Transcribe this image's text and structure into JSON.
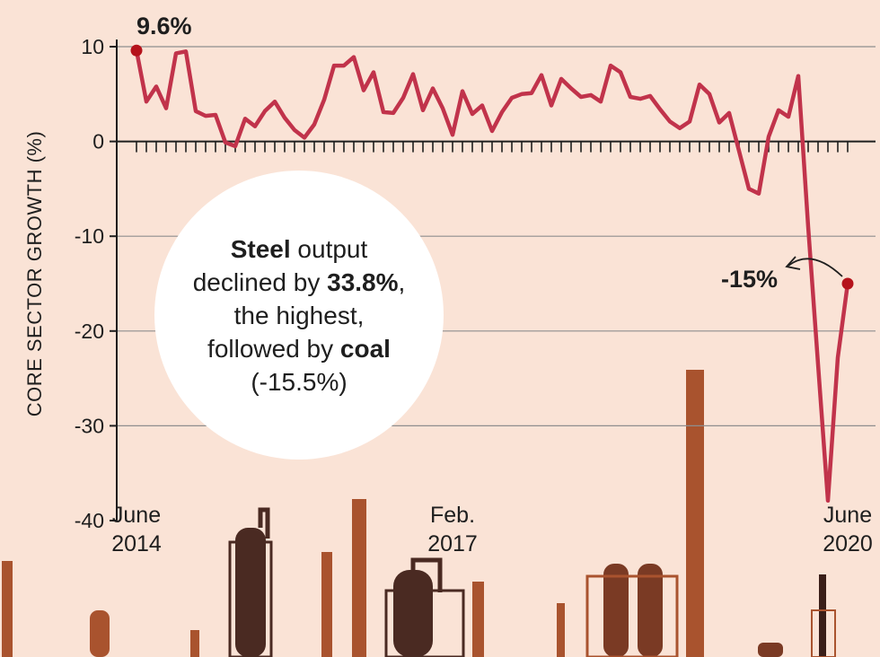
{
  "chart_data": {
    "type": "line",
    "title": "",
    "ylabel": "CORE SECTOR GROWTH (%)",
    "xlabel": "",
    "ylim": [
      -40,
      10
    ],
    "yticks": [
      "10",
      "0",
      "-10",
      "-20",
      "-30",
      "-40"
    ],
    "ytick_values": [
      10,
      0,
      -10,
      -20,
      -30,
      -40
    ],
    "grid": true,
    "x_labels": [
      {
        "index": 0,
        "line1": "June",
        "line2": "2014"
      },
      {
        "index": 32,
        "line1": "Feb.",
        "line2": "2017"
      },
      {
        "index": 72,
        "line1": "June",
        "line2": "2020"
      }
    ],
    "series": [
      {
        "color": "#c1334b",
        "values": [
          9.6,
          4.2,
          5.8,
          3.5,
          9.3,
          9.5,
          3.2,
          2.7,
          2.8,
          -0.1,
          -0.5,
          2.4,
          1.6,
          3.2,
          4.2,
          2.5,
          1.2,
          0.4,
          1.8,
          4.4,
          8.0,
          8.0,
          8.9,
          5.4,
          7.3,
          3.1,
          3.0,
          4.6,
          7.1,
          3.3,
          5.6,
          3.5,
          0.7,
          5.3,
          2.9,
          3.8,
          1.1,
          3.1,
          4.6,
          5.0,
          5.1,
          7.0,
          3.8,
          6.6,
          5.6,
          4.7,
          4.9,
          4.2,
          8.0,
          7.3,
          4.7,
          4.5,
          4.8,
          3.4,
          2.1,
          1.4,
          2.1,
          6.0,
          5.0,
          2.0,
          3.0,
          -1.0,
          -5.0,
          -5.5,
          0.5,
          3.3,
          2.6,
          6.9,
          -9.0,
          -23.5,
          -37.9,
          -22.8,
          -15.0
        ]
      }
    ],
    "annotations": [
      {
        "text": "9.6%",
        "point_index": 0
      },
      {
        "text": "-15%",
        "point_index": 72
      }
    ]
  },
  "callout": {
    "steel": "Steel",
    "t1": " output declined by ",
    "pct": "33.8%",
    "t2": ", the highest, followed by ",
    "coal": "coal",
    "paren": "(-15.5%)"
  },
  "colors": {
    "background": "#fae3d6",
    "line": "#c1334b",
    "chimney_light": "#a9532e",
    "chimney_dark": "#4a2a22"
  }
}
